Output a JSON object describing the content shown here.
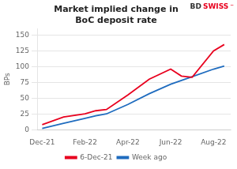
{
  "chart_data": {
    "type": "line",
    "title": "Market implied change in\nBoC deposit rate",
    "ylabel": "BPs",
    "annotations": [
      {
        "text": "BD",
        "color": "#333333"
      },
      {
        "text": "SWISS",
        "color": "#e8001e"
      },
      {
        "text": "⁻",
        "color": "#e8001e"
      }
    ],
    "x": [
      0,
      1,
      2,
      2.5,
      3,
      4,
      5,
      6,
      6.5,
      7,
      8,
      8.5
    ],
    "series": [
      {
        "name": "6-Dec-21",
        "color": "#e8001e",
        "values": [
          8,
          20,
          25,
          30,
          32,
          55,
          80,
          96,
          85,
          83,
          125,
          135
        ]
      },
      {
        "name": "Week ago",
        "color": "#1f6cbf",
        "values": [
          2,
          10,
          18,
          22,
          25,
          40,
          57,
          72,
          78,
          84,
          96,
          101
        ]
      }
    ],
    "xlim": [
      -0.2,
      8.8
    ],
    "xticks": [
      {
        "value": 0,
        "label": "Dec-21"
      },
      {
        "value": 2,
        "label": "Feb-22"
      },
      {
        "value": 4,
        "label": "Apr-22"
      },
      {
        "value": 6,
        "label": "Jun-22"
      },
      {
        "value": 8,
        "label": "Aug-22"
      }
    ],
    "ylim": [
      0,
      160
    ],
    "yticks": [
      0,
      25,
      50,
      75,
      100,
      125,
      150
    ],
    "grid": "y",
    "legend": "bottom"
  }
}
